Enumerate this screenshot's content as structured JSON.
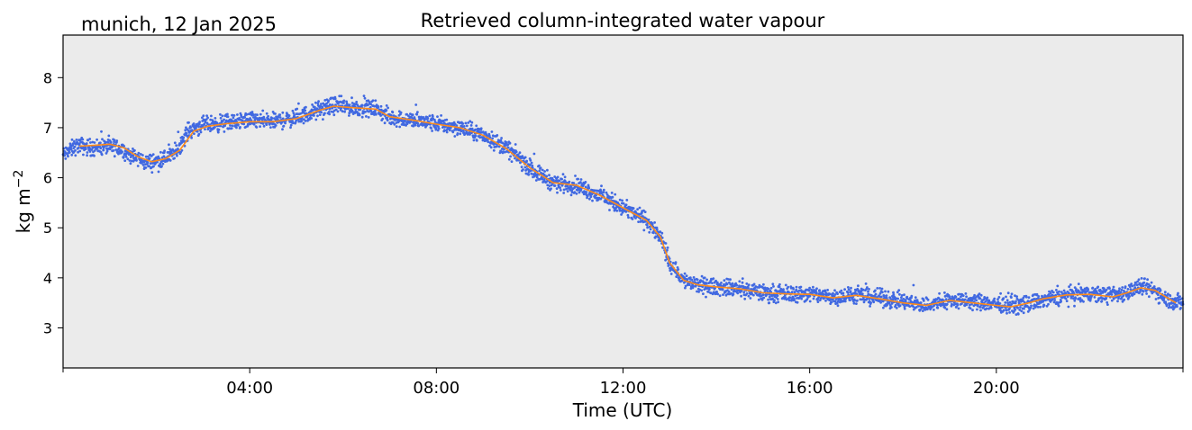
{
  "chart_data": {
    "type": "line",
    "title": "Retrieved column-integrated water vapour",
    "subtitle": "munich, 12 Jan 2025",
    "xlabel": "Time (UTC)",
    "ylabel": "kg m",
    "ylabel_superscript": "−2",
    "x_unit": "hours UTC",
    "xlim": [
      0,
      24
    ],
    "ylim": [
      2.2,
      8.85
    ],
    "x_ticks": [
      {
        "value": 4,
        "label": "04:00"
      },
      {
        "value": 8,
        "label": "08:00"
      },
      {
        "value": 12,
        "label": "12:00"
      },
      {
        "value": 16,
        "label": "16:00"
      },
      {
        "value": 20,
        "label": "20:00"
      }
    ],
    "x_minor_ticks": [
      0,
      24
    ],
    "y_ticks": [
      3,
      4,
      5,
      6,
      7,
      8
    ],
    "grid": false,
    "background": "#ebebeb",
    "series": [
      {
        "kind": "scatter",
        "color": "#4169e1",
        "spread": 0.12,
        "points": [
          [
            0,
            6.45
          ],
          [
            0.3,
            6.65
          ],
          [
            0.6,
            6.6
          ],
          [
            0.9,
            6.62
          ],
          [
            1.2,
            6.6
          ],
          [
            1.5,
            6.42
          ],
          [
            1.8,
            6.3
          ],
          [
            2.1,
            6.35
          ],
          [
            2.4,
            6.5
          ],
          [
            2.7,
            6.95
          ],
          [
            3.0,
            7.05
          ],
          [
            3.5,
            7.1
          ],
          [
            4.0,
            7.15
          ],
          [
            4.5,
            7.12
          ],
          [
            5.0,
            7.2
          ],
          [
            5.5,
            7.35
          ],
          [
            5.8,
            7.45
          ],
          [
            6.2,
            7.4
          ],
          [
            6.7,
            7.38
          ],
          [
            7.0,
            7.2
          ],
          [
            7.5,
            7.15
          ],
          [
            8.0,
            7.08
          ],
          [
            8.5,
            7.0
          ],
          [
            9.0,
            6.85
          ],
          [
            9.5,
            6.6
          ],
          [
            10.0,
            6.2
          ],
          [
            10.5,
            5.9
          ],
          [
            11.0,
            5.85
          ],
          [
            11.5,
            5.65
          ],
          [
            12.0,
            5.4
          ],
          [
            12.5,
            5.15
          ],
          [
            12.8,
            4.8
          ],
          [
            13.0,
            4.3
          ],
          [
            13.3,
            3.95
          ],
          [
            13.6,
            3.85
          ],
          [
            14.0,
            3.82
          ],
          [
            14.5,
            3.78
          ],
          [
            15.0,
            3.7
          ],
          [
            15.5,
            3.68
          ],
          [
            16.0,
            3.68
          ],
          [
            16.5,
            3.62
          ],
          [
            17.0,
            3.65
          ],
          [
            17.5,
            3.6
          ],
          [
            18.0,
            3.52
          ],
          [
            18.5,
            3.45
          ],
          [
            19.0,
            3.55
          ],
          [
            19.5,
            3.52
          ],
          [
            20.0,
            3.48
          ],
          [
            20.5,
            3.45
          ],
          [
            21.0,
            3.55
          ],
          [
            21.5,
            3.65
          ],
          [
            22.0,
            3.68
          ],
          [
            22.5,
            3.65
          ],
          [
            22.8,
            3.72
          ],
          [
            23.1,
            3.82
          ],
          [
            23.4,
            3.75
          ],
          [
            23.7,
            3.55
          ],
          [
            24.0,
            3.5
          ]
        ]
      },
      {
        "kind": "line",
        "color": "#ff8c1a",
        "points": [
          [
            0.35,
            6.63
          ],
          [
            0.7,
            6.65
          ],
          [
            1.0,
            6.67
          ],
          [
            1.3,
            6.6
          ],
          [
            1.6,
            6.42
          ],
          [
            1.9,
            6.32
          ],
          [
            2.2,
            6.38
          ],
          [
            2.5,
            6.55
          ],
          [
            2.8,
            6.93
          ],
          [
            3.1,
            7.03
          ],
          [
            3.5,
            7.08
          ],
          [
            4.0,
            7.12
          ],
          [
            4.5,
            7.12
          ],
          [
            5.0,
            7.18
          ],
          [
            5.5,
            7.35
          ],
          [
            5.8,
            7.43
          ],
          [
            6.2,
            7.4
          ],
          [
            6.7,
            7.37
          ],
          [
            7.0,
            7.22
          ],
          [
            7.5,
            7.15
          ],
          [
            8.0,
            7.07
          ],
          [
            8.5,
            7.0
          ],
          [
            9.0,
            6.85
          ],
          [
            9.5,
            6.58
          ],
          [
            10.0,
            6.2
          ],
          [
            10.5,
            5.9
          ],
          [
            11.0,
            5.85
          ],
          [
            11.5,
            5.65
          ],
          [
            12.0,
            5.4
          ],
          [
            12.5,
            5.15
          ],
          [
            12.8,
            4.82
          ],
          [
            13.0,
            4.3
          ],
          [
            13.3,
            3.95
          ],
          [
            13.6,
            3.86
          ],
          [
            14.0,
            3.82
          ],
          [
            14.5,
            3.78
          ],
          [
            15.0,
            3.7
          ],
          [
            15.5,
            3.68
          ],
          [
            16.0,
            3.67
          ],
          [
            16.5,
            3.6
          ],
          [
            17.0,
            3.65
          ],
          [
            17.5,
            3.58
          ],
          [
            18.0,
            3.5
          ],
          [
            18.5,
            3.45
          ],
          [
            19.0,
            3.55
          ],
          [
            19.5,
            3.5
          ],
          [
            20.0,
            3.45
          ],
          [
            20.3,
            3.42
          ],
          [
            20.7,
            3.5
          ],
          [
            21.0,
            3.58
          ],
          [
            21.5,
            3.66
          ],
          [
            22.0,
            3.67
          ],
          [
            22.5,
            3.62
          ],
          [
            22.8,
            3.7
          ],
          [
            23.1,
            3.8
          ],
          [
            23.4,
            3.75
          ],
          [
            23.7,
            3.58
          ],
          [
            23.85,
            3.5
          ]
        ]
      }
    ]
  }
}
